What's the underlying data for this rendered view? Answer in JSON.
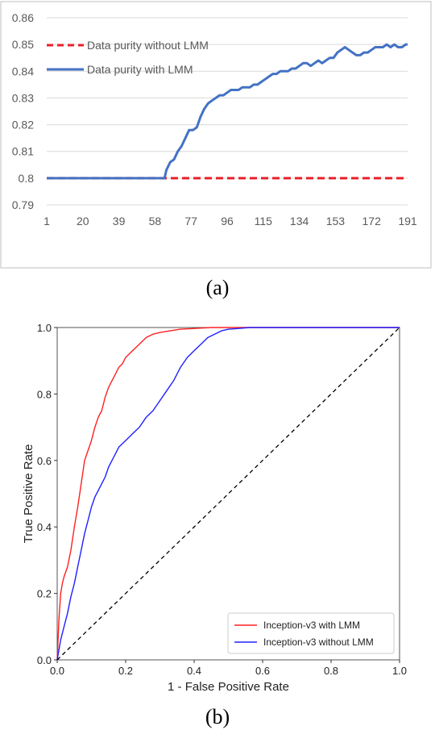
{
  "chart_data": [
    {
      "type": "line",
      "caption": "(a)",
      "title": "",
      "xlabel": "",
      "ylabel": "",
      "x_ticks": [
        "1",
        "20",
        "39",
        "58",
        "77",
        "96",
        "115",
        "134",
        "153",
        "172",
        "191"
      ],
      "y_ticks": [
        "0.79",
        "0.8",
        "0.81",
        "0.82",
        "0.83",
        "0.84",
        "0.85",
        "0.86"
      ],
      "xlim": [
        1,
        191
      ],
      "ylim": [
        0.79,
        0.86
      ],
      "grid": "horizontal",
      "legend": "top-left",
      "series": [
        {
          "name": "Data purity without LMM",
          "color": "#e8212a",
          "style": "dashed",
          "x": [
            1,
            58,
            63,
            191
          ],
          "y": [
            0.8,
            0.8,
            0.8,
            0.8
          ]
        },
        {
          "name": "Data purity with LMM",
          "color": "#4472c4",
          "style": "solid",
          "x": [
            1,
            20,
            39,
            58,
            63,
            64,
            66,
            68,
            70,
            72,
            74,
            76,
            78,
            80,
            82,
            84,
            86,
            88,
            90,
            92,
            94,
            96,
            98,
            100,
            102,
            104,
            106,
            108,
            110,
            112,
            114,
            116,
            118,
            120,
            122,
            124,
            126,
            128,
            130,
            132,
            134,
            136,
            138,
            140,
            142,
            144,
            146,
            148,
            150,
            152,
            154,
            156,
            158,
            160,
            162,
            164,
            166,
            168,
            170,
            172,
            174,
            176,
            178,
            180,
            182,
            184,
            186,
            188,
            190,
            191
          ],
          "y": [
            0.8,
            0.8,
            0.8,
            0.8,
            0.8,
            0.803,
            0.806,
            0.807,
            0.81,
            0.812,
            0.815,
            0.818,
            0.818,
            0.819,
            0.823,
            0.826,
            0.828,
            0.829,
            0.83,
            0.831,
            0.831,
            0.832,
            0.833,
            0.833,
            0.833,
            0.834,
            0.834,
            0.834,
            0.835,
            0.835,
            0.836,
            0.837,
            0.838,
            0.839,
            0.839,
            0.84,
            0.84,
            0.84,
            0.841,
            0.841,
            0.842,
            0.843,
            0.843,
            0.842,
            0.843,
            0.844,
            0.843,
            0.844,
            0.845,
            0.845,
            0.847,
            0.848,
            0.849,
            0.848,
            0.847,
            0.846,
            0.846,
            0.847,
            0.847,
            0.848,
            0.849,
            0.849,
            0.849,
            0.85,
            0.849,
            0.85,
            0.849,
            0.849,
            0.85,
            0.85
          ]
        }
      ]
    },
    {
      "type": "line",
      "caption": "(b)",
      "title": "",
      "xlabel": "1 - False Positive Rate",
      "ylabel": "True Positive Rate",
      "x_ticks": [
        "0.0",
        "0.2",
        "0.4",
        "0.6",
        "0.8",
        "1.0"
      ],
      "y_ticks": [
        "0.0",
        "0.2",
        "0.4",
        "0.6",
        "0.8",
        "1.0"
      ],
      "xlim": [
        0,
        1
      ],
      "ylim": [
        0,
        1
      ],
      "grid": "none",
      "legend": "bottom-right",
      "series": [
        {
          "name": "Inception-v3 with LMM",
          "color": "#ff2020",
          "style": "solid",
          "x": [
            0,
            0.005,
            0.01,
            0.015,
            0.02,
            0.03,
            0.04,
            0.05,
            0.06,
            0.07,
            0.08,
            0.09,
            0.1,
            0.11,
            0.12,
            0.13,
            0.14,
            0.15,
            0.16,
            0.17,
            0.18,
            0.19,
            0.2,
            0.22,
            0.24,
            0.26,
            0.28,
            0.3,
            0.33,
            0.36,
            0.4,
            0.45,
            0.5,
            0.55,
            0.6,
            0.7,
            0.8,
            0.9,
            1.0
          ],
          "y": [
            0.0,
            0.12,
            0.2,
            0.23,
            0.25,
            0.28,
            0.33,
            0.4,
            0.46,
            0.53,
            0.6,
            0.63,
            0.66,
            0.7,
            0.73,
            0.75,
            0.79,
            0.82,
            0.84,
            0.86,
            0.88,
            0.89,
            0.91,
            0.93,
            0.95,
            0.97,
            0.98,
            0.985,
            0.99,
            0.995,
            0.997,
            1.0,
            1.0,
            1.0,
            1.0,
            1.0,
            1.0,
            1.0,
            1.0
          ]
        },
        {
          "name": "Inception-v3 without LMM",
          "color": "#2020ff",
          "style": "solid",
          "x": [
            0,
            0.01,
            0.02,
            0.03,
            0.04,
            0.05,
            0.06,
            0.07,
            0.08,
            0.09,
            0.1,
            0.11,
            0.12,
            0.13,
            0.14,
            0.15,
            0.16,
            0.17,
            0.18,
            0.2,
            0.22,
            0.24,
            0.26,
            0.28,
            0.3,
            0.32,
            0.34,
            0.36,
            0.38,
            0.4,
            0.42,
            0.44,
            0.46,
            0.48,
            0.5,
            0.53,
            0.56,
            0.6,
            0.7,
            0.8,
            0.9,
            1.0
          ],
          "y": [
            0.0,
            0.06,
            0.1,
            0.14,
            0.19,
            0.23,
            0.28,
            0.33,
            0.38,
            0.42,
            0.46,
            0.49,
            0.51,
            0.53,
            0.55,
            0.58,
            0.6,
            0.62,
            0.64,
            0.66,
            0.68,
            0.7,
            0.73,
            0.75,
            0.78,
            0.81,
            0.84,
            0.88,
            0.91,
            0.93,
            0.95,
            0.97,
            0.98,
            0.99,
            0.995,
            0.997,
            1.0,
            1.0,
            1.0,
            1.0,
            1.0,
            1.0
          ]
        },
        {
          "name": "",
          "color": "#000000",
          "style": "dashed",
          "x": [
            0,
            1
          ],
          "y": [
            0,
            1
          ]
        }
      ]
    }
  ]
}
